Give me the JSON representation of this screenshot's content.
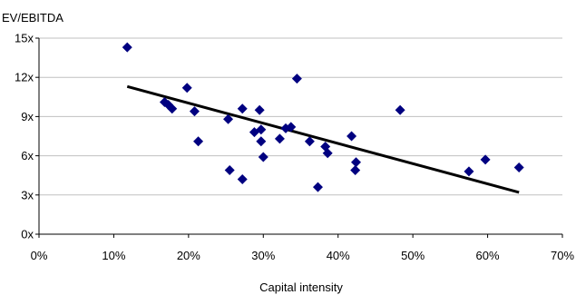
{
  "chart_data": {
    "type": "scatter",
    "title": "",
    "ylabel": "EV/EBITDA",
    "xlabel": "Capital intensity",
    "xlim": [
      0,
      0.7
    ],
    "ylim": [
      0,
      15
    ],
    "x_ticks": [
      0,
      0.1,
      0.2,
      0.3,
      0.4,
      0.5,
      0.6,
      0.7
    ],
    "x_tick_labels": [
      "0%",
      "10%",
      "20%",
      "30%",
      "40%",
      "50%",
      "60%",
      "70%"
    ],
    "y_ticks": [
      0,
      3,
      6,
      9,
      12,
      15
    ],
    "y_tick_labels": [
      "0x",
      "3x",
      "6x",
      "9x",
      "12x",
      "15x"
    ],
    "grid": "horizontal",
    "legend": "none",
    "marker_color": "#000080",
    "trendline_color": "#000000",
    "series": [
      {
        "points": [
          {
            "x": 0.118,
            "y": 14.3
          },
          {
            "x": 0.168,
            "y": 10.1
          },
          {
            "x": 0.173,
            "y": 9.9
          },
          {
            "x": 0.178,
            "y": 9.6
          },
          {
            "x": 0.198,
            "y": 11.2
          },
          {
            "x": 0.208,
            "y": 9.4
          },
          {
            "x": 0.213,
            "y": 7.1
          },
          {
            "x": 0.253,
            "y": 8.8
          },
          {
            "x": 0.255,
            "y": 4.9
          },
          {
            "x": 0.272,
            "y": 9.6
          },
          {
            "x": 0.272,
            "y": 4.2
          },
          {
            "x": 0.288,
            "y": 7.8
          },
          {
            "x": 0.295,
            "y": 9.5
          },
          {
            "x": 0.297,
            "y": 7.1
          },
          {
            "x": 0.297,
            "y": 8.0
          },
          {
            "x": 0.3,
            "y": 5.9
          },
          {
            "x": 0.322,
            "y": 7.3
          },
          {
            "x": 0.33,
            "y": 8.1
          },
          {
            "x": 0.337,
            "y": 8.2
          },
          {
            "x": 0.345,
            "y": 11.9
          },
          {
            "x": 0.362,
            "y": 7.1
          },
          {
            "x": 0.373,
            "y": 3.6
          },
          {
            "x": 0.383,
            "y": 6.7
          },
          {
            "x": 0.386,
            "y": 6.2
          },
          {
            "x": 0.418,
            "y": 7.5
          },
          {
            "x": 0.423,
            "y": 4.9
          },
          {
            "x": 0.424,
            "y": 5.5
          },
          {
            "x": 0.483,
            "y": 9.5
          },
          {
            "x": 0.575,
            "y": 4.8
          },
          {
            "x": 0.597,
            "y": 5.7
          },
          {
            "x": 0.642,
            "y": 5.1
          }
        ]
      }
    ],
    "trendline": [
      {
        "x": 0.118,
        "y": 11.3
      },
      {
        "x": 0.642,
        "y": 3.2
      }
    ]
  }
}
